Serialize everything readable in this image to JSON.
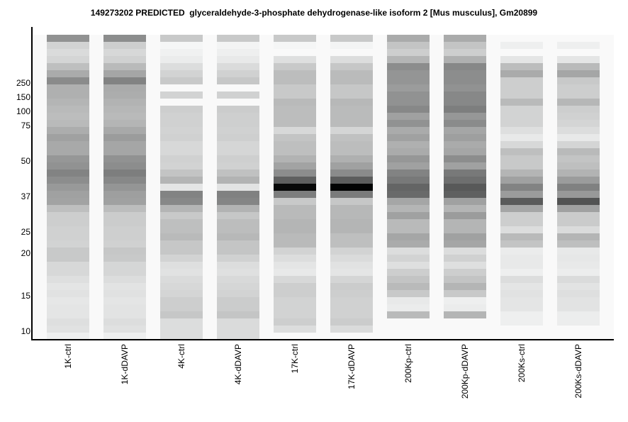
{
  "chart_data": {
    "type": "heatmap",
    "title": "149273202 PREDICTED  glyceraldehyde-3-phosphate dehydrogenase-like isoform 2 [Mus musculus], Gm20899",
    "xlabel": "",
    "ylabel": "",
    "intensity_scale": "grayscale 0 (black) to 255 (white); null = no signal",
    "y_ticks": [
      {
        "label": "250",
        "row": 6.8
      },
      {
        "label": "150",
        "row": 8.8
      },
      {
        "label": "100",
        "row": 10.8
      },
      {
        "label": "75",
        "row": 12.8
      },
      {
        "label": "50",
        "row": 17.8
      },
      {
        "label": "37",
        "row": 22.8
      },
      {
        "label": "25",
        "row": 27.8
      },
      {
        "label": "20",
        "row": 30.8
      },
      {
        "label": "15",
        "row": 36.8
      },
      {
        "label": "10",
        "row": 41.8
      }
    ],
    "lanes": [
      {
        "name": "1K-ctrl",
        "values": [
          145,
          210,
          218,
          212,
          190,
          170,
          138,
          175,
          175,
          180,
          185,
          188,
          185,
          172,
          160,
          168,
          168,
          150,
          145,
          130,
          140,
          152,
          160,
          162,
          190,
          205,
          205,
          208,
          208,
          210,
          200,
          200,
          215,
          215,
          222,
          228,
          225,
          230,
          228,
          228,
          222,
          225,
          238
        ]
      },
      {
        "name": "1K-dDAVP",
        "values": [
          140,
          205,
          215,
          208,
          185,
          165,
          130,
          170,
          172,
          178,
          182,
          185,
          180,
          168,
          155,
          165,
          165,
          145,
          140,
          125,
          135,
          148,
          158,
          160,
          188,
          203,
          203,
          206,
          206,
          208,
          198,
          200,
          213,
          213,
          220,
          226,
          224,
          228,
          226,
          226,
          220,
          224,
          238
        ]
      },
      {
        "name": "4K-ctrl",
        "values": [
          200,
          245,
          240,
          235,
          220,
          210,
          200,
          null,
          210,
          null,
          205,
          208,
          208,
          210,
          208,
          215,
          215,
          208,
          210,
          195,
          180,
          228,
          130,
          135,
          180,
          200,
          190,
          190,
          185,
          198,
          198,
          210,
          222,
          225,
          218,
          215,
          212,
          205,
          205,
          198,
          220,
          220,
          220
        ]
      },
      {
        "name": "4K-dDAVP",
        "values": [
          200,
          243,
          238,
          232,
          218,
          208,
          198,
          null,
          208,
          null,
          203,
          206,
          206,
          208,
          206,
          213,
          213,
          206,
          208,
          192,
          178,
          226,
          128,
          132,
          178,
          198,
          188,
          188,
          183,
          196,
          196,
          208,
          220,
          223,
          216,
          213,
          210,
          203,
          203,
          196,
          218,
          218,
          218
        ]
      },
      {
        "name": "17K-ctrl",
        "values": [
          200,
          245,
          null,
          222,
          200,
          188,
          188,
          200,
          200,
          185,
          188,
          188,
          188,
          215,
          195,
          190,
          190,
          178,
          162,
          140,
          95,
          8,
          125,
          200,
          185,
          185,
          180,
          180,
          185,
          185,
          210,
          220,
          228,
          232,
          215,
          205,
          205,
          210,
          210,
          210,
          205,
          220
        ]
      },
      {
        "name": "17K-dDAVP",
        "values": [
          200,
          243,
          null,
          220,
          198,
          186,
          186,
          198,
          198,
          183,
          186,
          186,
          186,
          212,
          192,
          188,
          188,
          175,
          160,
          138,
          92,
          2,
          122,
          198,
          183,
          183,
          180,
          180,
          190,
          190,
          210,
          218,
          225,
          228,
          212,
          203,
          205,
          208,
          208,
          208,
          203,
          218
        ]
      },
      {
        "name": "200Kp-ctrl",
        "values": [
          170,
          195,
          205,
          180,
          140,
          148,
          148,
          155,
          145,
          145,
          135,
          160,
          145,
          170,
          160,
          175,
          170,
          150,
          160,
          130,
          120,
          100,
          105,
          165,
          180,
          160,
          185,
          185,
          165,
          170,
          220,
          210,
          222,
          205,
          195,
          185,
          200,
          232,
          235,
          185
        ]
      },
      {
        "name": "200Kp-dDAVP",
        "values": [
          170,
          195,
          205,
          175,
          135,
          140,
          140,
          145,
          135,
          135,
          125,
          150,
          138,
          165,
          158,
          170,
          165,
          140,
          160,
          120,
          110,
          88,
          95,
          160,
          180,
          155,
          180,
          180,
          160,
          165,
          220,
          208,
          222,
          205,
          195,
          180,
          200,
          238,
          235,
          180
        ]
      },
      {
        "name": "200Ks-ctrl",
        "values": [
          null,
          238,
          null,
          228,
          188,
          170,
          205,
          205,
          205,
          185,
          210,
          210,
          210,
          222,
          232,
          215,
          190,
          200,
          200,
          180,
          160,
          130,
          155,
          90,
          165,
          205,
          205,
          220,
          185,
          195,
          235,
          232,
          232,
          238,
          220,
          228,
          225,
          228,
          228,
          238,
          238
        ]
      },
      {
        "name": "200Ks-dDAVP",
        "values": [
          null,
          238,
          null,
          228,
          185,
          165,
          200,
          205,
          205,
          182,
          205,
          208,
          212,
          220,
          232,
          212,
          185,
          195,
          190,
          178,
          155,
          128,
          152,
          82,
          160,
          202,
          202,
          218,
          180,
          190,
          232,
          230,
          232,
          236,
          218,
          226,
          222,
          226,
          226,
          236,
          236
        ]
      }
    ]
  }
}
